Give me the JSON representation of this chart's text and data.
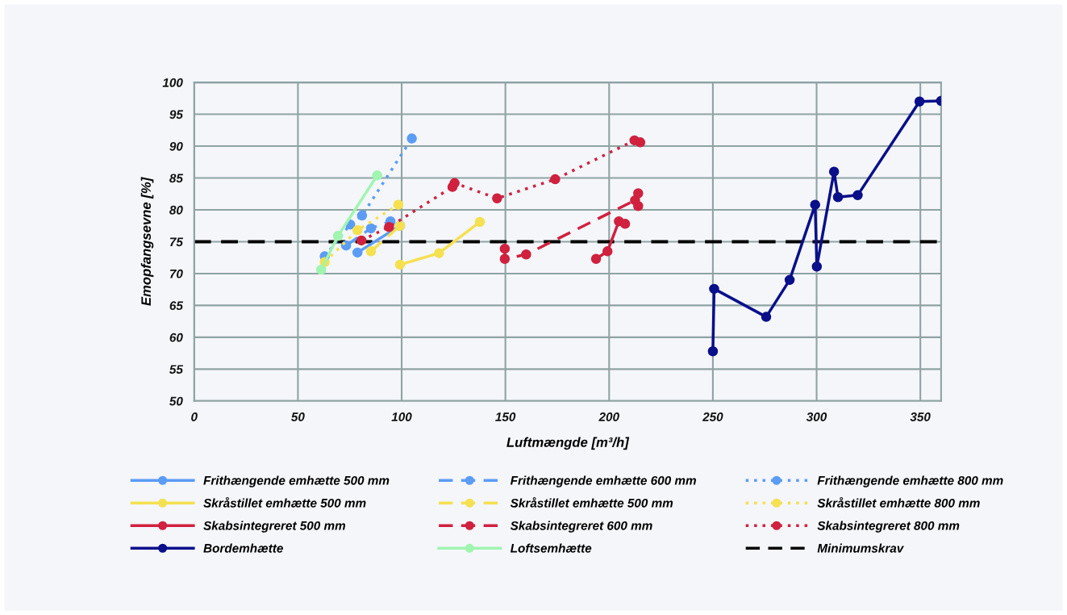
{
  "chart_data": {
    "type": "line",
    "xlabel": "Luftmængde [m³/h]",
    "ylabel": "Emopfangsevne [%]",
    "xlim": [
      0,
      360
    ],
    "xticks": [
      0,
      50,
      100,
      150,
      200,
      250,
      300,
      350
    ],
    "ylim": [
      50,
      100
    ],
    "yticks": [
      50,
      55,
      60,
      65,
      70,
      75,
      80,
      85,
      90,
      95,
      100
    ],
    "grid": true,
    "legend": "bottom",
    "marker": "circle",
    "series": [
      {
        "name": "Frithængende emhætte 500 mm",
        "color": "#5b9cf5",
        "line_style": "solid",
        "x": [
          78.7,
          99.2
        ],
        "values": [
          73.3,
          77.5
        ]
      },
      {
        "name": "Frithængende emhætte 600 mm",
        "color": "#5b9cf5",
        "line_style": "dashed",
        "x": [
          73.2,
          85.2,
          94.6
        ],
        "values": [
          74.4,
          77.1,
          78.2
        ]
      },
      {
        "name": "Frithængende emhætte 800 mm",
        "color": "#5b9cf5",
        "line_style": "dotted",
        "x": [
          62.9,
          75.2,
          80.9,
          104.9
        ],
        "values": [
          72.7,
          77.7,
          79.1,
          91.2
        ]
      },
      {
        "name": "Skråstillet emhætte 500 mm",
        "color": "#f5e050",
        "line_style": "solid",
        "x": [
          99.2,
          118.0,
          137.7
        ],
        "values": [
          71.4,
          73.2,
          78.1
        ]
      },
      {
        "name": "Skråstillet emhætte 500 mm",
        "color": "#f5e050",
        "line_style": "dashed",
        "x": [
          85.2,
          99.2
        ],
        "values": [
          73.5,
          77.5
        ]
      },
      {
        "name": "Skråstillet emhætte 800 mm",
        "color": "#f5e050",
        "line_style": "dotted",
        "x": [
          62.9,
          78.7,
          98.4
        ],
        "values": [
          71.8,
          76.8,
          80.8
        ]
      },
      {
        "name": "Skabsintegreret 500 mm",
        "color": "#d0213f",
        "line_style": "solid",
        "x": [
          193.7,
          199.2,
          204.7,
          207.7
        ],
        "values": [
          72.3,
          73.5,
          78.2,
          77.8
        ]
      },
      {
        "name": "Skabsintegreret 600 mm",
        "color": "#d0213f",
        "line_style": "dashed",
        "x": [
          149.7,
          149.7,
          160.0,
          212.5,
          214.0,
          214.0
        ],
        "values": [
          73.9,
          72.3,
          73.0,
          81.5,
          82.6,
          80.6
        ]
      },
      {
        "name": "Skabsintegreret 800 mm",
        "color": "#d0213f",
        "line_style": "dotted",
        "x": [
          80.6,
          93.9,
          124.5,
          125.5,
          146.0,
          174.0,
          212.2,
          215.0
        ],
        "values": [
          75.2,
          77.3,
          83.6,
          84.2,
          81.8,
          84.8,
          90.9,
          90.6
        ]
      },
      {
        "name": "Bordemhætte",
        "color": "#0a0f8a",
        "line_style": "solid",
        "x": [
          250.0,
          250.6,
          275.7,
          287.0,
          299.3,
          300.1,
          308.4,
          310.3,
          319.8,
          349.6,
          360.0
        ],
        "values": [
          57.8,
          67.6,
          63.2,
          69.0,
          80.8,
          71.1,
          86.0,
          82.0,
          82.3,
          97.0,
          97.1
        ]
      },
      {
        "name": "Loftsemhætte",
        "color": "#a0f5b0",
        "line_style": "solid",
        "x": [
          61.2,
          69.3,
          88.2
        ],
        "values": [
          70.6,
          75.9,
          85.4
        ]
      }
    ],
    "ref_lines": [
      {
        "axis": "y",
        "value": 75,
        "label": "Minimumskrav",
        "color": "#000000",
        "line_style": "dashed"
      }
    ]
  }
}
